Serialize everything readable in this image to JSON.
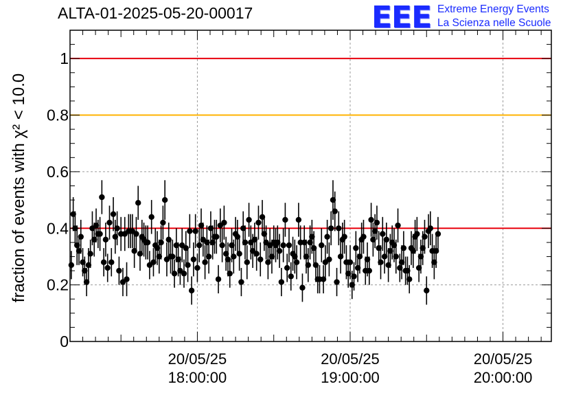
{
  "title": "ALTA-01-2025-05-20-00017",
  "logo": {
    "mark": "EEE",
    "line1": "Extreme Energy Events",
    "line2": "La Scienza nelle Scuole"
  },
  "chart_data": {
    "type": "scatter",
    "title": "ALTA-01-2025-05-20-00017",
    "ylabel": "fraction of events with χ² < 10.0",
    "xlabel": "",
    "ylim": [
      0,
      1.1
    ],
    "yticks": [
      0,
      0.2,
      0.4,
      0.6,
      0.8,
      1
    ],
    "ytick_labels": [
      "0",
      "0.2",
      "0.4",
      "0.6",
      "0.8",
      "1"
    ],
    "xrange_minutes": [
      -50,
      139
    ],
    "xticks_minutes": [
      0,
      60,
      120
    ],
    "xtick_labels": [
      [
        "20/05/25",
        "18:00:00"
      ],
      [
        "20/05/25",
        "19:00:00"
      ],
      [
        "20/05/25",
        "20:00:00"
      ]
    ],
    "reference_lines": [
      {
        "y": 1.0,
        "color": "#e8000b"
      },
      {
        "y": 0.8,
        "color": "#ffb300"
      },
      {
        "y": 0.4,
        "color": "#e8000b"
      }
    ],
    "grid": true,
    "marker_color": "#000000",
    "x_start_minutes": -49.5,
    "x_step_minutes": 0.75,
    "values": [
      0.27,
      0.45,
      0.4,
      0.34,
      0.32,
      0.37,
      0.28,
      0.25,
      0.21,
      0.27,
      0.31,
      0.4,
      0.36,
      0.41,
      0.38,
      0.38,
      0.51,
      0.28,
      0.36,
      0.26,
      0.42,
      0.28,
      0.45,
      0.37,
      0.4,
      0.25,
      0.38,
      0.21,
      0.38,
      0.22,
      0.39,
      0.39,
      0.39,
      0.32,
      0.38,
      0.49,
      0.31,
      0.37,
      0.36,
      0.35,
      0.35,
      0.27,
      0.44,
      0.28,
      0.34,
      0.33,
      0.3,
      0.35,
      0.42,
      0.5,
      0.29,
      0.36,
      0.3,
      0.3,
      0.24,
      0.34,
      0.29,
      0.25,
      0.34,
      0.24,
      0.33,
      0.27,
      0.39,
      0.18,
      0.29,
      0.39,
      0.26,
      0.34,
      0.41,
      0.36,
      0.28,
      0.35,
      0.3,
      0.4,
      0.35,
      0.37,
      0.37,
      0.22,
      0.41,
      0.34,
      0.42,
      0.31,
      0.29,
      0.24,
      0.34,
      0.3,
      0.38,
      0.37,
      0.31,
      0.21,
      0.4,
      0.35,
      0.28,
      0.43,
      0.35,
      0.32,
      0.36,
      0.31,
      0.42,
      0.29,
      0.44,
      0.38,
      0.35,
      0.28,
      0.34,
      0.3,
      0.35,
      0.34,
      0.35,
      0.32,
      0.21,
      0.34,
      0.43,
      0.26,
      0.34,
      0.23,
      0.31,
      0.3,
      0.28,
      0.43,
      0.35,
      0.19,
      0.35,
      0.3,
      0.27,
      0.35,
      0.37,
      0.33,
      0.27,
      0.22,
      0.22,
      0.34,
      0.22,
      0.28,
      0.37,
      0.29,
      0.4,
      0.5,
      0.46,
      0.21,
      0.4,
      0.3,
      0.36,
      0.37,
      0.28,
      0.24,
      0.28,
      0.2,
      0.23,
      0.33,
      0.26,
      0.3,
      0.36,
      0.37,
      0.25,
      0.29,
      0.25,
      0.43,
      0.36,
      0.39,
      0.42,
      0.33,
      0.28,
      0.38,
      0.3,
      0.36,
      0.27,
      0.32,
      0.35,
      0.34,
      0.3,
      0.41,
      0.26,
      0.28,
      0.33,
      0.25,
      0.25,
      0.22,
      0.33,
      0.32,
      0.37,
      0.38,
      0.26,
      0.3,
      0.33,
      0.37,
      0.18,
      0.39,
      0.4,
      0.32,
      0.28,
      0.32,
      0.38
    ],
    "errors": [
      0.05,
      0.06,
      0.06,
      0.07,
      0.05,
      0.06,
      0.05,
      0.05,
      0.05,
      0.06,
      0.05,
      0.06,
      0.06,
      0.06,
      0.05,
      0.06,
      0.06,
      0.05,
      0.06,
      0.05,
      0.06,
      0.05,
      0.06,
      0.06,
      0.06,
      0.05,
      0.06,
      0.05,
      0.06,
      0.06,
      0.06,
      0.06,
      0.06,
      0.06,
      0.06,
      0.06,
      0.06,
      0.06,
      0.06,
      0.06,
      0.06,
      0.05,
      0.06,
      0.05,
      0.06,
      0.06,
      0.06,
      0.06,
      0.06,
      0.07,
      0.06,
      0.06,
      0.06,
      0.06,
      0.05,
      0.06,
      0.06,
      0.05,
      0.06,
      0.05,
      0.06,
      0.06,
      0.06,
      0.05,
      0.06,
      0.06,
      0.05,
      0.06,
      0.06,
      0.06,
      0.06,
      0.06,
      0.06,
      0.06,
      0.06,
      0.06,
      0.06,
      0.05,
      0.06,
      0.06,
      0.06,
      0.06,
      0.06,
      0.05,
      0.06,
      0.06,
      0.06,
      0.06,
      0.06,
      0.05,
      0.06,
      0.06,
      0.06,
      0.06,
      0.06,
      0.06,
      0.06,
      0.06,
      0.06,
      0.06,
      0.06,
      0.06,
      0.06,
      0.06,
      0.06,
      0.06,
      0.06,
      0.06,
      0.06,
      0.06,
      0.05,
      0.06,
      0.06,
      0.05,
      0.06,
      0.05,
      0.06,
      0.06,
      0.06,
      0.06,
      0.06,
      0.05,
      0.06,
      0.06,
      0.06,
      0.06,
      0.06,
      0.06,
      0.06,
      0.05,
      0.05,
      0.06,
      0.05,
      0.06,
      0.06,
      0.06,
      0.06,
      0.07,
      0.07,
      0.05,
      0.06,
      0.06,
      0.06,
      0.06,
      0.06,
      0.05,
      0.06,
      0.05,
      0.05,
      0.06,
      0.05,
      0.06,
      0.06,
      0.06,
      0.05,
      0.06,
      0.05,
      0.06,
      0.06,
      0.06,
      0.06,
      0.06,
      0.06,
      0.06,
      0.06,
      0.06,
      0.06,
      0.06,
      0.06,
      0.06,
      0.06,
      0.06,
      0.05,
      0.06,
      0.06,
      0.05,
      0.05,
      0.05,
      0.06,
      0.06,
      0.06,
      0.06,
      0.05,
      0.06,
      0.06,
      0.06,
      0.05,
      0.06,
      0.06,
      0.06,
      0.06,
      0.06,
      0.06
    ]
  }
}
